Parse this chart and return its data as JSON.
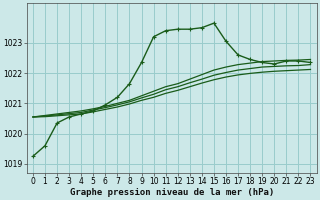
{
  "xlabel": "Graphe pression niveau de la mer (hPa)",
  "background_color": "#cce8e8",
  "grid_color": "#99cccc",
  "line_color": "#1a5c1a",
  "ylim": [
    1018.7,
    1024.3
  ],
  "xlim": [
    -0.5,
    23.5
  ],
  "yticks": [
    1019,
    1020,
    1021,
    1022,
    1023
  ],
  "xticks": [
    0,
    1,
    2,
    3,
    4,
    5,
    6,
    7,
    8,
    9,
    10,
    11,
    12,
    13,
    14,
    15,
    16,
    17,
    18,
    19,
    20,
    21,
    22,
    23
  ],
  "series": [
    {
      "x": [
        0,
        1,
        2,
        3,
        4,
        5,
        6,
        7,
        8,
        9,
        10,
        11,
        12,
        13,
        14,
        15,
        16,
        17,
        18,
        19,
        20,
        21,
        22,
        23
      ],
      "y": [
        1019.25,
        1019.6,
        1020.35,
        1020.55,
        1020.65,
        1020.75,
        1020.95,
        1021.2,
        1021.65,
        1022.35,
        1023.2,
        1023.4,
        1023.45,
        1023.45,
        1023.5,
        1023.65,
        1023.05,
        1022.6,
        1022.45,
        1022.35,
        1022.3,
        1022.4,
        1022.4,
        1022.35
      ],
      "marker": "P",
      "markersize": 2.5,
      "linewidth": 1.0
    },
    {
      "x": [
        0,
        1,
        2,
        3,
        4,
        5,
        6,
        7,
        8,
        9,
        10,
        11,
        12,
        13,
        14,
        15,
        16,
        17,
        18,
        19,
        20,
        21,
        22,
        23
      ],
      "y": [
        1020.55,
        1020.6,
        1020.65,
        1020.7,
        1020.75,
        1020.82,
        1020.9,
        1021.0,
        1021.1,
        1021.25,
        1021.4,
        1021.55,
        1021.65,
        1021.8,
        1021.95,
        1022.1,
        1022.2,
        1022.28,
        1022.33,
        1022.38,
        1022.4,
        1022.42,
        1022.43,
        1022.45
      ],
      "marker": null,
      "markersize": 0,
      "linewidth": 0.9
    },
    {
      "x": [
        0,
        1,
        2,
        3,
        4,
        5,
        6,
        7,
        8,
        9,
        10,
        11,
        12,
        13,
        14,
        15,
        16,
        17,
        18,
        19,
        20,
        21,
        22,
        23
      ],
      "y": [
        1020.55,
        1020.58,
        1020.62,
        1020.66,
        1020.7,
        1020.78,
        1020.86,
        1020.95,
        1021.05,
        1021.18,
        1021.3,
        1021.45,
        1021.55,
        1021.68,
        1021.8,
        1021.93,
        1022.02,
        1022.1,
        1022.15,
        1022.2,
        1022.22,
        1022.24,
        1022.25,
        1022.28
      ],
      "marker": null,
      "markersize": 0,
      "linewidth": 0.9
    },
    {
      "x": [
        0,
        1,
        2,
        3,
        4,
        5,
        6,
        7,
        8,
        9,
        10,
        11,
        12,
        13,
        14,
        15,
        16,
        17,
        18,
        19,
        20,
        21,
        22,
        23
      ],
      "y": [
        1020.55,
        1020.56,
        1020.59,
        1020.62,
        1020.65,
        1020.72,
        1020.8,
        1020.88,
        1020.98,
        1021.1,
        1021.2,
        1021.33,
        1021.43,
        1021.55,
        1021.67,
        1021.78,
        1021.87,
        1021.94,
        1021.99,
        1022.03,
        1022.06,
        1022.08,
        1022.1,
        1022.12
      ],
      "marker": null,
      "markersize": 0,
      "linewidth": 0.9
    }
  ],
  "tick_fontsize": 5.5,
  "xlabel_fontsize": 6.5
}
